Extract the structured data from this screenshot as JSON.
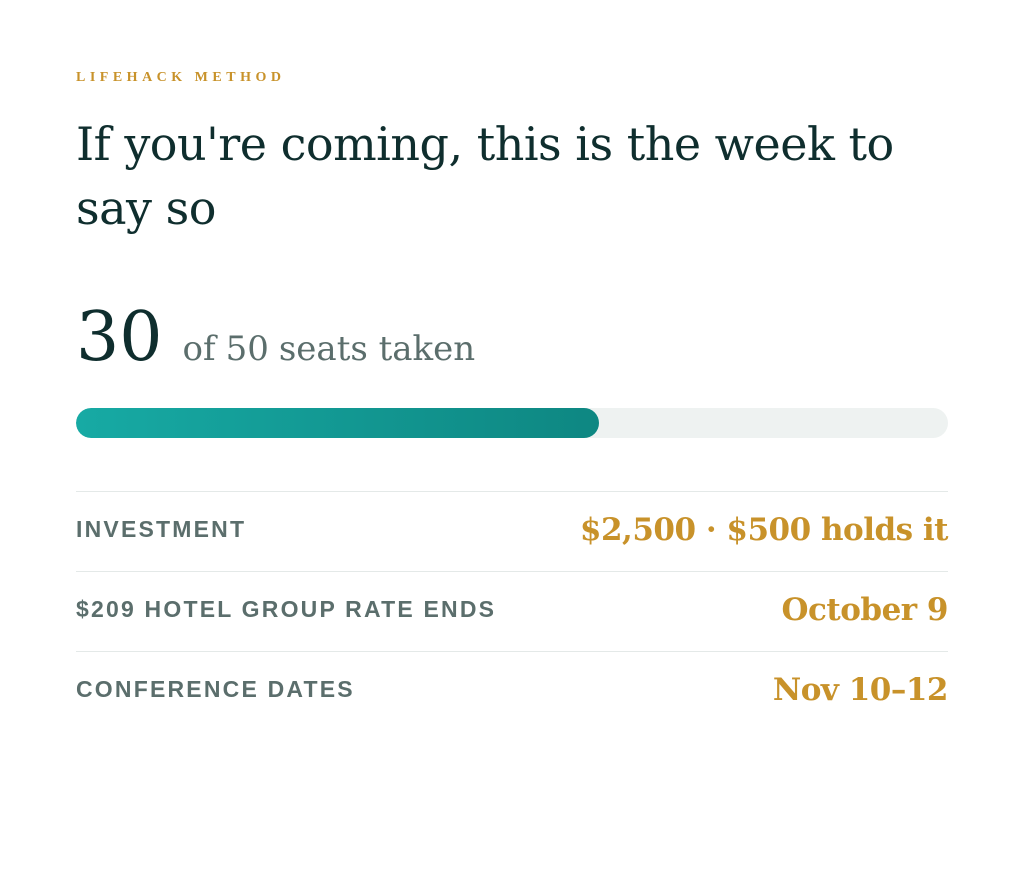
{
  "eyebrow": "LIFEHACK METHOD",
  "headline": "If you're coming, this is the week to say so",
  "seats": {
    "taken": 30,
    "prefix": "of",
    "total": 50,
    "suffix": "seats taken"
  },
  "details": [
    {
      "label": "INVESTMENT",
      "value": "$2,500 · $500 holds it"
    },
    {
      "label": "$209 HOTEL GROUP RATE ENDS",
      "value": "October 9"
    },
    {
      "label": "CONFERENCE DATES",
      "value": "Nov 10–12"
    }
  ]
}
